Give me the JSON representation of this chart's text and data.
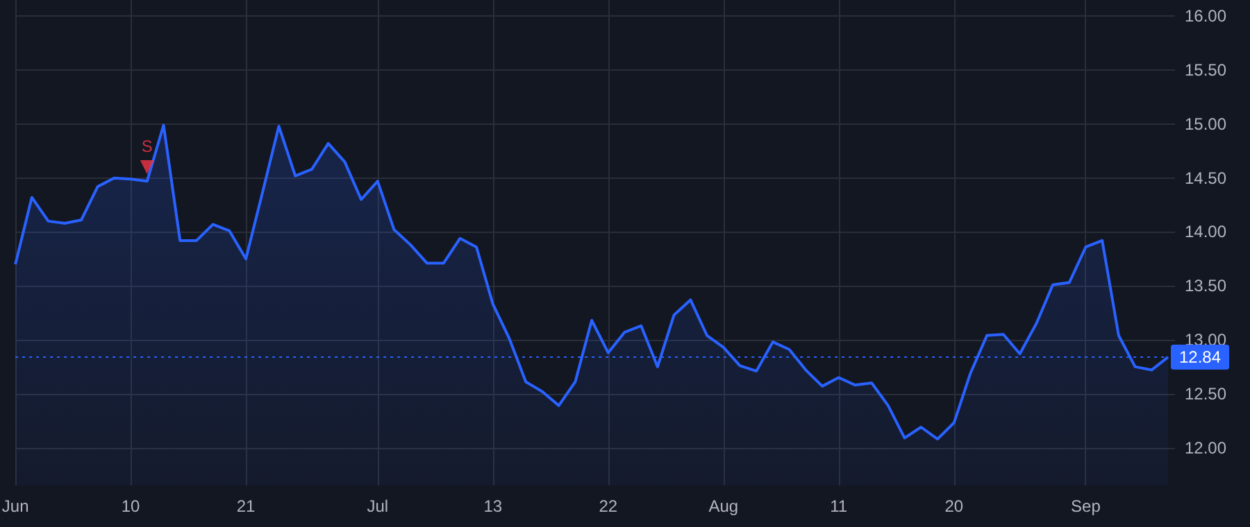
{
  "chart_data": {
    "type": "area",
    "categories": [
      "Jun",
      null,
      null,
      null,
      null,
      null,
      null,
      "10",
      null,
      null,
      null,
      null,
      null,
      null,
      "21",
      null,
      null,
      null,
      null,
      null,
      null,
      null,
      "Jul",
      null,
      null,
      null,
      null,
      null,
      null,
      "13",
      null,
      null,
      null,
      null,
      null,
      null,
      "22",
      null,
      null,
      null,
      null,
      null,
      null,
      "Aug",
      null,
      null,
      null,
      null,
      null,
      null,
      "11",
      null,
      null,
      null,
      null,
      null,
      null,
      "20",
      null,
      null,
      null,
      null,
      null,
      null,
      null,
      "Sep",
      null,
      null,
      null,
      null,
      null
    ],
    "series": [
      {
        "color": "#2962ff",
        "values": [
          13.7,
          14.32,
          14.1,
          14.08,
          14.11,
          14.42,
          14.5,
          14.49,
          14.47,
          14.99,
          13.92,
          13.92,
          14.07,
          14.01,
          13.75,
          14.36,
          14.98,
          14.52,
          14.58,
          14.82,
          14.65,
          14.3,
          14.47,
          14.02,
          13.88,
          13.71,
          13.71,
          13.94,
          13.86,
          13.33,
          13.01,
          12.61,
          12.52,
          12.39,
          12.61,
          13.18,
          12.88,
          13.07,
          13.13,
          12.75,
          13.23,
          13.37,
          13.04,
          12.93,
          12.76,
          12.71,
          12.98,
          12.91,
          12.72,
          12.57,
          12.65,
          12.58,
          12.6,
          12.39,
          12.09,
          12.19,
          12.08,
          12.23,
          12.69,
          13.04,
          13.05,
          12.87,
          13.15,
          13.51,
          13.53,
          13.86,
          13.92,
          13.04,
          12.75,
          12.72,
          12.84
        ]
      },
      {
        "name": "S",
        "type": "scatter",
        "marker": "triangle",
        "color": "#f23645",
        "values": [
          null,
          null,
          null,
          null,
          null,
          null,
          null,
          null,
          14.6,
          null,
          null,
          null,
          null,
          null,
          null,
          null,
          null,
          null,
          null,
          null,
          null,
          null,
          null,
          null,
          null,
          null,
          null,
          null,
          null,
          null,
          null,
          null,
          null,
          null,
          null,
          null,
          null,
          null,
          null,
          null,
          null,
          null,
          null,
          null,
          null,
          null,
          null,
          null,
          null,
          null,
          null,
          null,
          null,
          null,
          null,
          null,
          null,
          null,
          null,
          null,
          null,
          null,
          null,
          null,
          null,
          null,
          null,
          null,
          null,
          null,
          null
        ]
      }
    ],
    "ylim": [
      11.65,
      16.15
    ],
    "yticks": [
      {
        "value": 12,
        "label": "12.00"
      },
      {
        "value": 12.5,
        "label": "12.50"
      },
      {
        "value": 13,
        "label": "13.00"
      },
      {
        "value": 13.5,
        "label": "13.50"
      },
      {
        "value": 14,
        "label": "14.00"
      },
      {
        "value": 14.5,
        "label": "14.50"
      },
      {
        "value": 15,
        "label": "15.00"
      },
      {
        "value": 15.5,
        "label": "15.50"
      },
      {
        "value": 16,
        "label": "16.00"
      }
    ],
    "ref_lines": [
      {
        "axis": "y",
        "value": 12.84,
        "label": "12.84",
        "color": "#2962ff",
        "line_style": "dotted"
      }
    ],
    "grid": true,
    "marker": "none"
  }
}
